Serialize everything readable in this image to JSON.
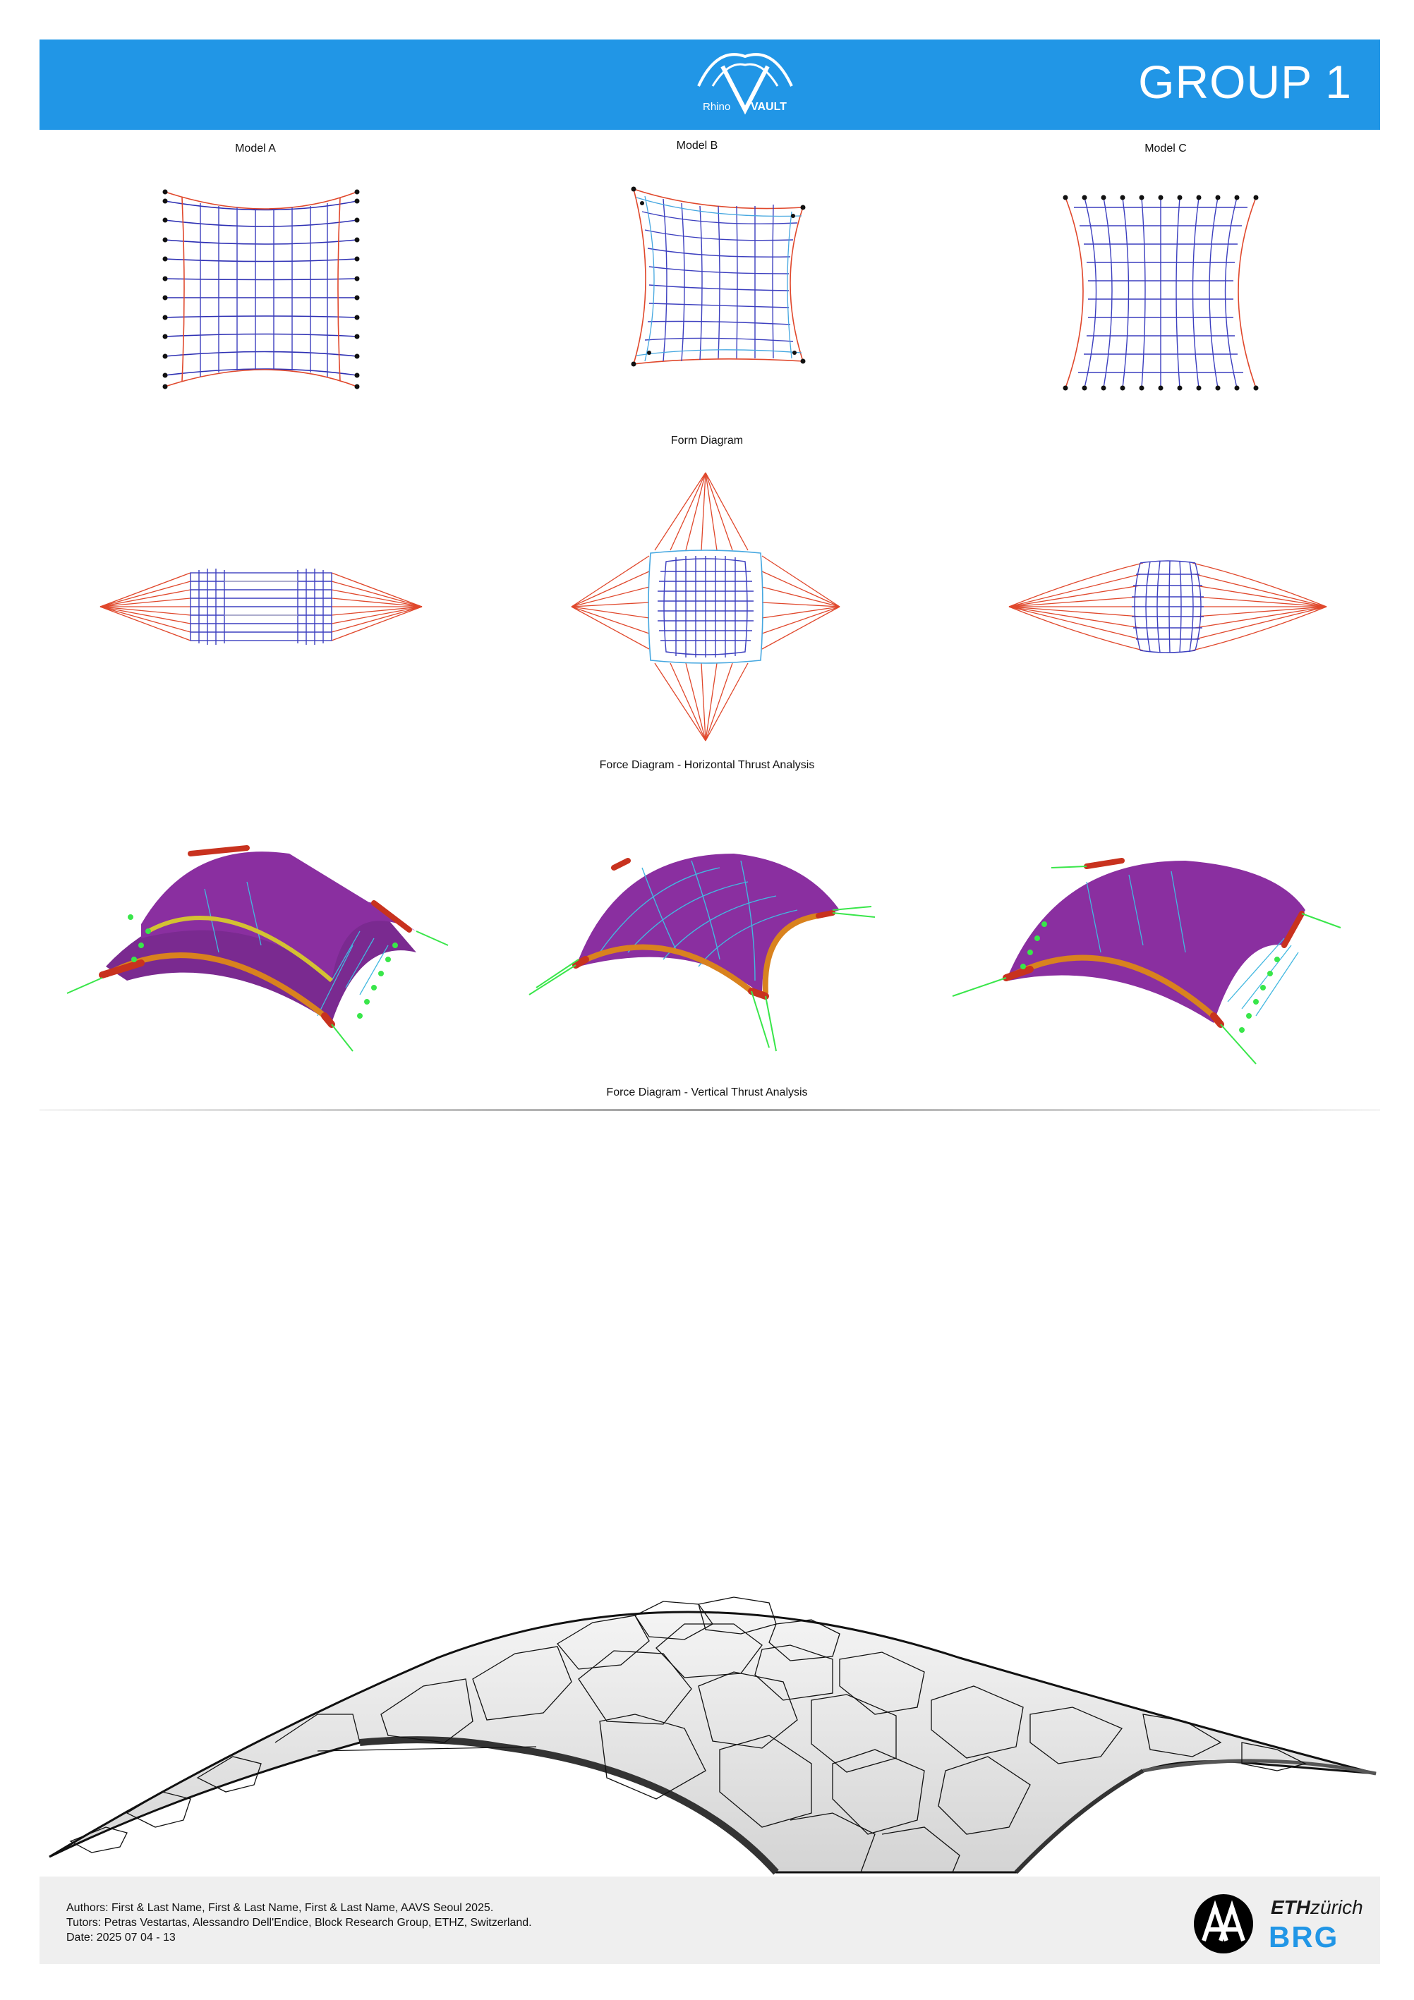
{
  "header": {
    "logo_text_left": "Rhino",
    "logo_text_right": "VAULT",
    "title": "GROUP 1"
  },
  "models": {
    "a": "Model A",
    "b": "Model B",
    "c": "Model C"
  },
  "sections": {
    "form_diagram": "Form Diagram",
    "force_horizontal": "Force Diagram - Horizontal Thrust Analysis",
    "force_vertical": "Force Diagram - Vertical Thrust Analysis"
  },
  "footer": {
    "authors": "Authors: First & Last Name, First & Last Name, First & Last Name, AAVS Seoul 2025.",
    "tutors": "Tutors: Petras Vestartas, Alessandro Dell'Endice, Block Research Group, ETHZ, Switzerland.",
    "date": "Date: 2025 07 04 - 13",
    "eth_bold": "ETH",
    "eth_italic": "zürich",
    "brg": "BRG"
  },
  "colors": {
    "header_blue": "#2196e6",
    "net_blue": "#2d2fb3",
    "net_red": "#e0482c",
    "light_blue": "#45a7e0",
    "vault_purple": "#8a2a9e",
    "support_red": "#c8321e",
    "reaction_green": "#39e64a"
  }
}
